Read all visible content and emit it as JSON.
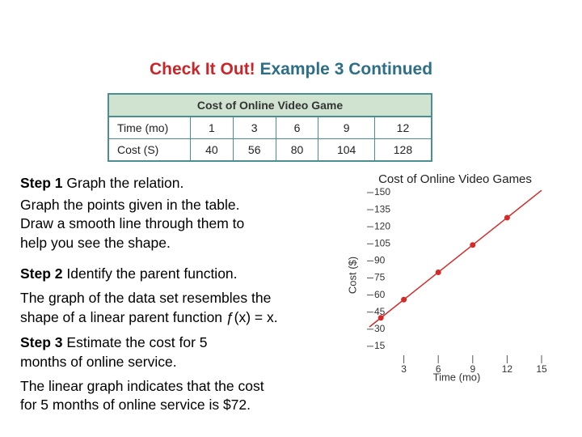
{
  "header": {
    "title_highlight": "Check It Out!",
    "title": "Example 3 Continued"
  },
  "table": {
    "title": "Cost of Online Video Game",
    "rows": [
      [
        "Time (mo)",
        1,
        3,
        6,
        9,
        12
      ],
      [
        "Cost (S)",
        40,
        56,
        80,
        104,
        128
      ]
    ]
  },
  "steps": [
    {
      "label": "Step 1",
      "lines": [
        "Graph the relation."
      ],
      "body": [
        "Graph the points given in the table.",
        "Draw a smooth line through them to",
        "help you see the shape."
      ]
    },
    {
      "label": "Step 2",
      "lines": [
        "Identify the parent function."
      ],
      "body": [
        "The graph of the data set resembles the",
        "shape of a linear parent function ƒ(x) = x."
      ]
    },
    {
      "label": "Step 3",
      "lines": [
        "Estimate the cost for 5",
        "months of online service."
      ],
      "body": [
        "The linear graph indicates that the cost",
        "for 5 months of online service is $72."
      ]
    }
  ],
  "chart_data": {
    "type": "line",
    "title": "Cost of Online Video Games",
    "x_label": "Time (mo)",
    "y_label": "Cost ($)",
    "x": [
      1,
      3,
      6,
      9,
      12
    ],
    "series": [
      {
        "name": "Cost",
        "color": "#d42a2a",
        "values": [
          40,
          56,
          80,
          104,
          128
        ]
      }
    ],
    "xlim": [
      0,
      15
    ],
    "ylim": [
      0,
      150
    ],
    "xticks": [
      3,
      6,
      9,
      12,
      15
    ],
    "yticks": [
      150,
      135,
      120,
      105,
      90,
      75,
      60,
      45,
      30,
      15
    ]
  }
}
